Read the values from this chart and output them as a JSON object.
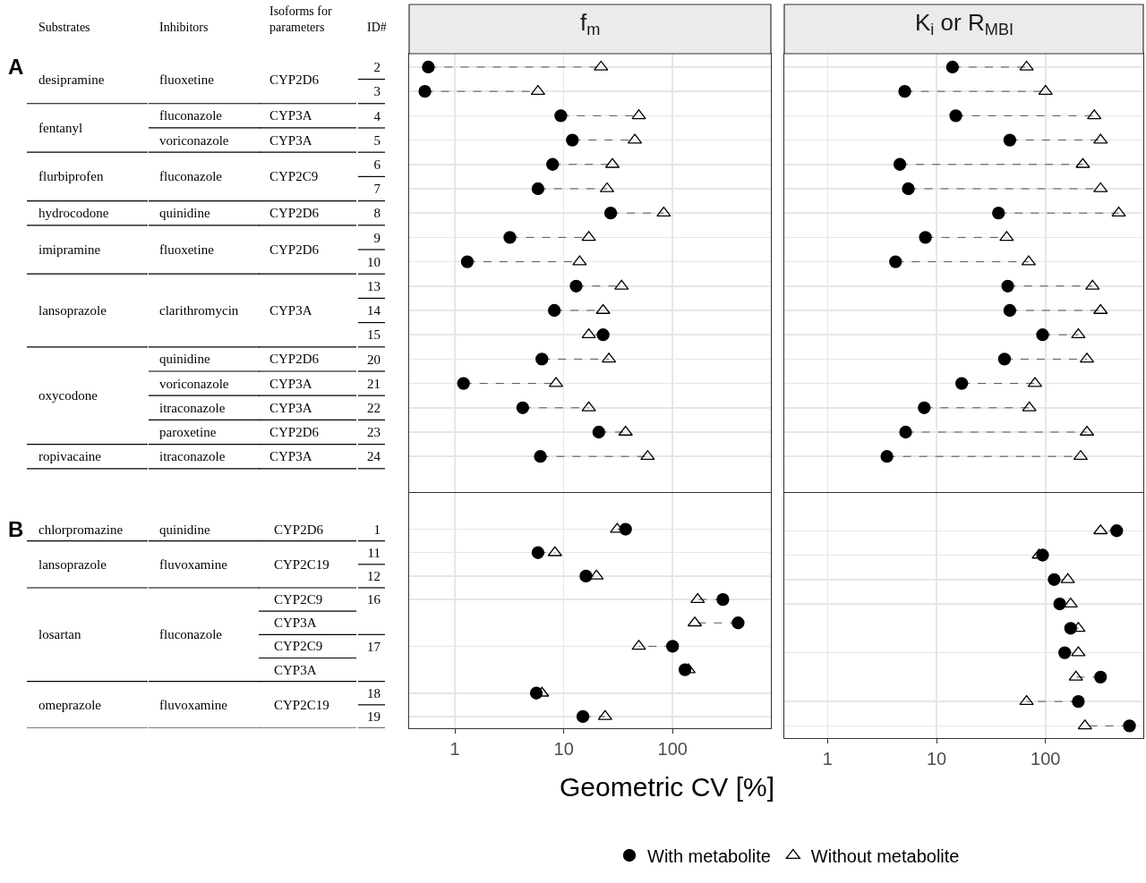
{
  "chart_data": [
    {
      "type": "scatter",
      "title": "f$_{m}$",
      "categories": [
        "2",
        "3",
        "4",
        "5",
        "6",
        "7",
        "8",
        "9",
        "10",
        "13",
        "14",
        "15",
        "20",
        "21",
        "22",
        "23",
        "24",
        null
      ],
      "series": [
        {
          "color": "#000000",
          "marker": "circle",
          "values": [
            0.57,
            0.53,
            9.4,
            12,
            7.9,
            5.8,
            27,
            3.2,
            1.3,
            13,
            8.2,
            23,
            6.3,
            1.2,
            4.2,
            21,
            6.1,
            null
          ]
        },
        {
          "color": "#000000",
          "marker": "triangle",
          "values": [
            22,
            5.8,
            49,
            45,
            28,
            25,
            83,
            17,
            14,
            34,
            23,
            17,
            26,
            8.5,
            17,
            37,
            59,
            null
          ]
        }
      ],
      "xlim": [
        0.38,
        800
      ],
      "xticks": [
        1,
        10,
        100
      ],
      "log": "x",
      "grid": true,
      "line_style": "dashed",
      "tick_labels": "y",
      "orientation": "horizontal",
      "annotations": [
        "A",
        "Substrates",
        "Inhibitors",
        "Isoforms for parameters",
        "ID#",
        "desipramine",
        "fentanyl",
        "flurbiprofen",
        "hydrocodone",
        "imipramine",
        "lansoprazole",
        "oxycodone",
        "ropivacaine",
        "fluoxetine",
        "fluconazole",
        "voriconazole",
        "fluconazole",
        "quinidine",
        "fluoxetine",
        "clarithromycin",
        "quinidine",
        "voriconazole",
        "itraconazole",
        "paroxetine",
        "itraconazole",
        "CYP2D6",
        "CYP3A",
        "CYP3A",
        "CYP2C9",
        "CYP2D6",
        "CYP2D6",
        "CYP3A",
        "CYP2D6",
        "CYP3A",
        "CYP3A",
        "CYP2D6",
        "CYP3A"
      ]
    },
    {
      "type": "scatter",
      "title": "K$_{i}$ or R$_{MBI}$",
      "categories": [
        "2",
        "3",
        "4",
        "5",
        "6",
        "7",
        "8",
        "9",
        "10",
        "13",
        "14",
        "15",
        "20",
        "21",
        "22",
        "23",
        "24",
        null
      ],
      "series": [
        {
          "color": "#000000",
          "marker": "circle",
          "values": [
            14,
            5.1,
            15,
            47,
            4.6,
            5.5,
            37,
            7.9,
            4.2,
            45,
            47,
            94,
            42,
            17,
            7.7,
            5.2,
            3.5,
            null
          ]
        },
        {
          "color": "#000000",
          "marker": "triangle",
          "values": [
            67,
            100,
            280,
            320,
            220,
            320,
            470,
            44,
            70,
            270,
            320,
            200,
            240,
            80,
            71,
            240,
            210,
            null
          ]
        }
      ],
      "xlim": [
        0.4,
        790
      ],
      "xticks": [
        1,
        10,
        100
      ],
      "log": "x",
      "grid": true,
      "line_style": "dashed",
      "tick_labels": false,
      "orientation": "horizontal"
    },
    {
      "type": "scatter",
      "categories": [
        null,
        "1",
        "11",
        "12",
        "16",
        null,
        "17",
        null,
        "18",
        "19"
      ],
      "series": [
        {
          "name": "With metabolite",
          "color": "#000000",
          "marker": "circle",
          "values": [
            null,
            37,
            5.8,
            16,
            290,
            400,
            100,
            130,
            5.6,
            15
          ]
        },
        {
          "name": "Without metabolite",
          "color": "#000000",
          "marker": "triangle",
          "values": [
            null,
            31,
            8.3,
            20,
            170,
            160,
            49,
            140,
            6.3,
            24
          ]
        }
      ],
      "xlim": [
        0.38,
        800
      ],
      "xticks": [
        1,
        10,
        100
      ],
      "log": "x",
      "grid": true,
      "line_style": "dashed",
      "legend": "bottom",
      "xlabel": "Geometric CV [%]",
      "orientation": "horizontal",
      "annotations": [
        "B",
        "chlorpromazine",
        "lansoprazole",
        "losartan",
        "omeprazole",
        "quinidine",
        "fluvoxamine",
        "fluconazole",
        "fluvoxamine",
        "CYP2D6",
        "CYP2C19",
        "CYP2C9",
        "CYP3A",
        "CYP2C9",
        "CYP3A",
        "CYP2C19"
      ]
    },
    {
      "type": "scatter",
      "categories": [
        null,
        "1",
        "11",
        "12",
        "16",
        null,
        "17",
        null,
        "18",
        "19"
      ],
      "series": [
        {
          "color": "#000000",
          "marker": "circle",
          "values": [
            null,
            450,
            94,
            120,
            135,
            170,
            150,
            320,
            200,
            590
          ]
        },
        {
          "color": "#000000",
          "marker": "triangle",
          "values": [
            null,
            320,
            87,
            160,
            170,
            200,
            200,
            190,
            67,
            230
          ]
        }
      ],
      "xlim": [
        0.4,
        790
      ],
      "xticks": [
        1,
        10,
        100
      ],
      "log": "x",
      "grid": true,
      "line_style": "dashed",
      "tick_labels": "x",
      "orientation": "horizontal"
    }
  ]
}
